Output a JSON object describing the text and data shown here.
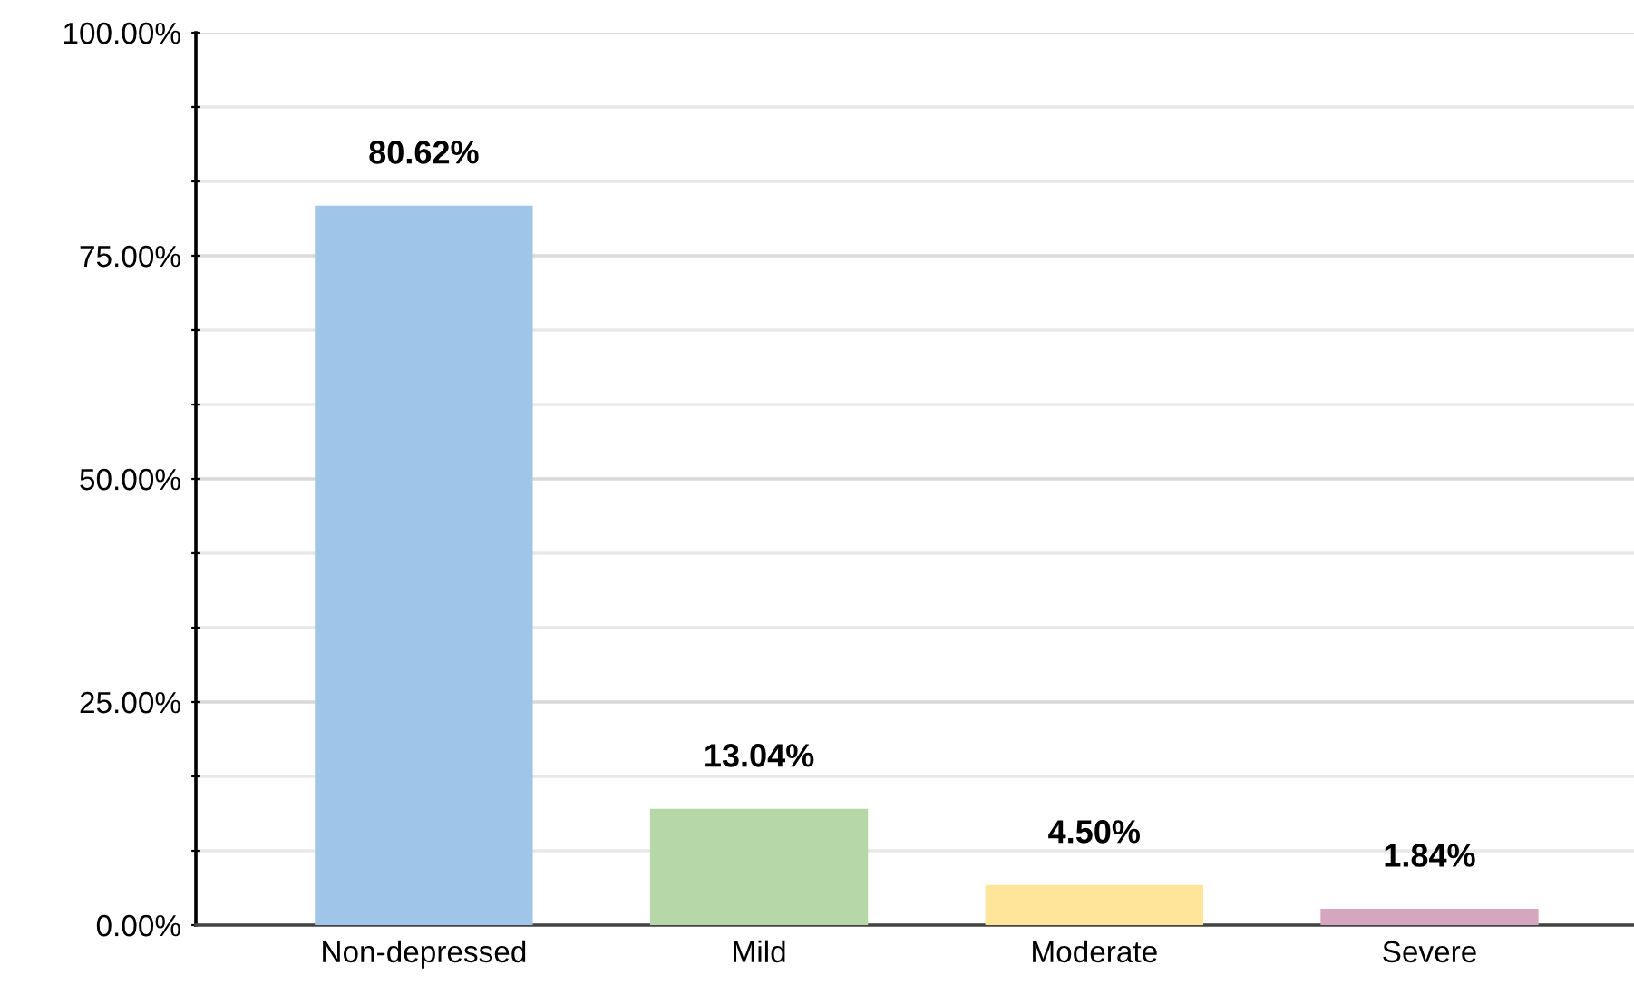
{
  "chart_data": {
    "type": "bar",
    "categories": [
      "Non-depressed",
      "Mild",
      "Moderate",
      "Severe"
    ],
    "values": [
      80.62,
      13.04,
      4.5,
      1.84
    ],
    "colors": [
      "#9fc5e8",
      "#b6d7a8",
      "#ffe599",
      "#d5a6bd"
    ],
    "value_labels": [
      "80.62%",
      "13.04%",
      "4.50%",
      "1.84%"
    ],
    "ylim": [
      0,
      100
    ],
    "yticks": [
      {
        "value": 0,
        "label": "0.00%"
      },
      {
        "value": 8.33,
        "label": null
      },
      {
        "value": 16.67,
        "label": null
      },
      {
        "value": 25,
        "label": "25.00%"
      },
      {
        "value": 33.33,
        "label": null
      },
      {
        "value": 41.67,
        "label": null
      },
      {
        "value": 50,
        "label": "50.00%"
      },
      {
        "value": 58.33,
        "label": null
      },
      {
        "value": 66.67,
        "label": null
      },
      {
        "value": 75,
        "label": "75.00%"
      },
      {
        "value": 83.33,
        "label": null
      },
      {
        "value": 91.67,
        "label": null
      },
      {
        "value": 100,
        "label": "100.00%"
      }
    ],
    "grid": "y"
  }
}
